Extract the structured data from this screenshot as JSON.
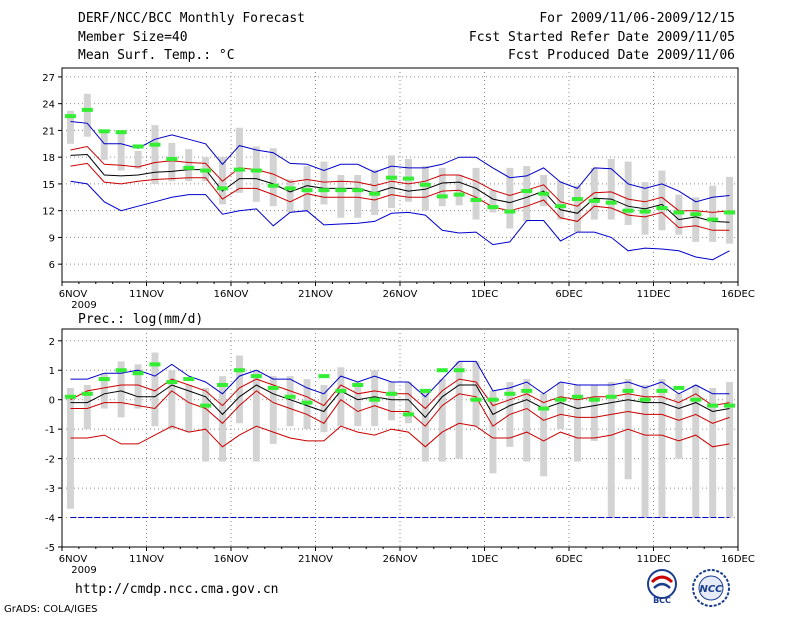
{
  "header": {
    "title": "DERF/NCC/BCC Monthly Forecast",
    "member_size": "Member Size=40",
    "variable": "Mean Surf. Temp.: °C",
    "period": "For 2009/11/06-2009/12/15",
    "started": "Fcst Started Refer Date 2009/11/05",
    "produced": "Fcst Produced Date 2009/11/06"
  },
  "footer": {
    "url": "http://cmdp.ncc.cma.gov.cn",
    "grads": "GrADS: COLA/IGES",
    "logo_bcc": "BCC",
    "logo_ncc": "NCC"
  },
  "colors": {
    "mean": "#000000",
    "spread": "#cc0000",
    "extreme": "#0000cc",
    "bar": "#d3d3d3",
    "marker": "#33ee33"
  },
  "chart_data": [
    {
      "type": "line",
      "title": "Mean Surf. Temp.: °C",
      "x_tick_labels": [
        "6NOV",
        "11NOV",
        "16NOV",
        "21NOV",
        "26NOV",
        "1DEC",
        "6DEC",
        "11DEC",
        "16DEC"
      ],
      "x_sub_label": "2009",
      "ylim": [
        4,
        28
      ],
      "yticks": [
        6,
        9,
        12,
        15,
        18,
        21,
        24,
        27
      ],
      "days": 40,
      "series": [
        {
          "name": "max",
          "color": "#0000cc",
          "values": [
            22.0,
            21.8,
            19.5,
            19.5,
            19.0,
            20.0,
            20.5,
            20.0,
            19.5,
            17.2,
            19.3,
            18.8,
            18.5,
            17.3,
            17.2,
            16.5,
            17.2,
            17.2,
            16.3,
            17.0,
            16.8,
            16.8,
            17.2,
            18.0,
            18.0,
            16.8,
            15.7,
            15.9,
            16.8,
            15.2,
            14.5,
            16.8,
            16.7,
            15.0,
            14.5,
            15.0,
            14.2,
            13.0,
            13.5,
            13.7
          ]
        },
        {
          "name": "upper",
          "color": "#cc0000",
          "values": [
            18.8,
            19.2,
            17.2,
            17.1,
            16.9,
            17.4,
            17.6,
            17.4,
            17.3,
            15.3,
            16.8,
            16.6,
            16.1,
            15.2,
            15.5,
            15.2,
            15.3,
            15.2,
            14.8,
            15.3,
            15.0,
            15.3,
            16.0,
            16.0,
            15.3,
            14.3,
            13.7,
            14.3,
            14.9,
            13.0,
            12.5,
            14.0,
            14.1,
            13.3,
            13.0,
            13.5,
            12.0,
            12.0,
            11.8,
            12.0
          ]
        },
        {
          "name": "mean",
          "color": "#000000",
          "values": [
            18.2,
            18.3,
            16.0,
            15.9,
            16.0,
            16.3,
            16.4,
            16.6,
            16.6,
            14.2,
            15.6,
            15.6,
            15.0,
            14.1,
            14.8,
            14.5,
            14.5,
            14.5,
            14.0,
            14.6,
            14.2,
            14.4,
            15.1,
            15.2,
            14.5,
            13.3,
            12.9,
            13.5,
            14.2,
            12.1,
            11.7,
            13.4,
            13.3,
            12.5,
            12.2,
            12.7,
            11.0,
            11.3,
            10.8,
            10.7
          ]
        },
        {
          "name": "lower",
          "color": "#cc0000",
          "values": [
            17.0,
            17.3,
            15.2,
            15.0,
            15.3,
            15.5,
            15.6,
            15.7,
            15.7,
            13.3,
            14.5,
            14.5,
            13.8,
            13.0,
            13.9,
            13.5,
            13.5,
            13.5,
            13.2,
            13.8,
            13.5,
            13.5,
            14.2,
            14.3,
            13.5,
            12.4,
            12.0,
            12.5,
            13.2,
            11.2,
            10.8,
            12.5,
            12.3,
            11.5,
            11.3,
            11.8,
            10.1,
            10.3,
            9.8,
            9.8
          ]
        },
        {
          "name": "min",
          "color": "#0000cc",
          "values": [
            15.3,
            15.0,
            13.0,
            12.0,
            12.5,
            13.0,
            13.5,
            13.8,
            13.8,
            11.6,
            12.0,
            12.2,
            10.3,
            11.8,
            12.0,
            10.4,
            10.5,
            10.6,
            10.8,
            11.7,
            11.8,
            11.5,
            9.8,
            9.5,
            9.6,
            8.2,
            8.5,
            10.9,
            10.9,
            8.6,
            9.6,
            9.6,
            9.0,
            7.5,
            7.8,
            7.7,
            7.5,
            6.8,
            6.5,
            7.5
          ]
        }
      ],
      "bars": {
        "low": [
          19.5,
          20.3,
          17.7,
          16.5,
          16.7,
          15.0,
          15.3,
          15.3,
          15.3,
          12.7,
          14.0,
          13.0,
          12.5,
          11.8,
          12.0,
          12.7,
          11.2,
          11.2,
          11.5,
          12.3,
          13.0,
          12.0,
          12.5,
          12.6,
          11.0,
          11.8,
          10.0,
          10.8,
          12.5,
          11.0,
          9.6,
          11.0,
          11.0,
          10.4,
          9.3,
          9.8,
          9.3,
          8.5,
          8.5,
          8.3
        ],
        "high": [
          23.2,
          25.1,
          21.0,
          21.0,
          18.7,
          21.6,
          19.6,
          18.9,
          18.0,
          18.0,
          21.3,
          19.2,
          19.0,
          15.5,
          17.0,
          17.5,
          16.0,
          16.0,
          16.6,
          18.2,
          17.8,
          17.0,
          16.8,
          16.0,
          16.8,
          14.3,
          16.8,
          17.0,
          16.0,
          15.3,
          14.8,
          16.8,
          17.8,
          17.5,
          15.2,
          16.5,
          13.8,
          13.5,
          14.8,
          15.8
        ]
      },
      "markers": [
        22.6,
        23.3,
        20.9,
        20.8,
        19.2,
        19.4,
        17.8,
        16.8,
        16.5,
        14.5,
        16.6,
        16.5,
        14.8,
        14.5,
        14.3,
        14.3,
        14.3,
        14.3,
        13.9,
        15.7,
        15.6,
        14.9,
        13.6,
        13.8,
        13.2,
        12.4,
        11.9,
        14.2,
        13.9,
        12.5,
        13.3,
        13.1,
        12.9,
        12.0,
        11.9,
        12.3,
        11.8,
        11.6,
        11.0,
        11.8
      ]
    },
    {
      "type": "line",
      "title": "Prec.: log(mm/d)",
      "x_tick_labels": [
        "6NOV",
        "11NOV",
        "16NOV",
        "21NOV",
        "26NOV",
        "1DEC",
        "6DEC",
        "11DEC",
        "16DEC"
      ],
      "x_sub_label": "2009",
      "ylim": [
        -5,
        2.4
      ],
      "yticks": [
        -5,
        -4,
        -3,
        -2,
        -1,
        0,
        1,
        2
      ],
      "days": 40,
      "series": [
        {
          "name": "max",
          "color": "#0000cc",
          "values": [
            0.7,
            0.7,
            0.9,
            0.9,
            1.0,
            0.8,
            1.2,
            0.8,
            0.6,
            0.2,
            0.8,
            1.0,
            0.7,
            0.7,
            0.4,
            0.2,
            0.8,
            0.6,
            0.8,
            0.6,
            0.6,
            0.1,
            0.7,
            1.3,
            1.3,
            0.3,
            0.4,
            0.6,
            0.2,
            0.6,
            0.5,
            0.5,
            0.5,
            0.6,
            0.4,
            0.6,
            0.2,
            0.5,
            0.2,
            0.2
          ]
        },
        {
          "name": "upper",
          "color": "#cc0000",
          "values": [
            0.0,
            0.3,
            0.4,
            0.5,
            0.5,
            0.3,
            0.7,
            0.5,
            0.3,
            -0.2,
            0.4,
            0.7,
            0.5,
            0.3,
            0.1,
            -0.2,
            0.5,
            0.2,
            0.3,
            0.2,
            0.2,
            -0.3,
            0.3,
            0.7,
            0.6,
            -0.2,
            0.0,
            0.2,
            -0.1,
            0.1,
            0.0,
            0.1,
            0.1,
            0.2,
            0.1,
            0.1,
            -0.1,
            0.2,
            -0.2,
            -0.1
          ]
        },
        {
          "name": "mean",
          "color": "#000000",
          "values": [
            -0.1,
            -0.1,
            0.2,
            0.3,
            0.1,
            0.1,
            0.5,
            0.3,
            0.1,
            -0.5,
            0.1,
            0.5,
            0.2,
            0.0,
            -0.2,
            -0.4,
            0.3,
            0.0,
            0.1,
            0.0,
            0.0,
            -0.6,
            0.1,
            0.5,
            0.5,
            -0.5,
            -0.2,
            0.0,
            -0.3,
            -0.1,
            -0.3,
            -0.2,
            -0.1,
            0.0,
            -0.1,
            -0.1,
            -0.3,
            -0.1,
            -0.4,
            -0.3
          ]
        },
        {
          "name": "lower",
          "color": "#cc0000",
          "values": [
            -0.3,
            -0.3,
            -0.1,
            -0.1,
            -0.2,
            -0.3,
            0.3,
            -0.1,
            -0.3,
            -0.8,
            -0.2,
            0.3,
            -0.1,
            -0.3,
            -0.5,
            -0.8,
            0.0,
            -0.4,
            -0.2,
            -0.4,
            -0.4,
            -0.9,
            -0.2,
            0.2,
            0.1,
            -0.9,
            -0.5,
            -0.3,
            -0.7,
            -0.5,
            -0.6,
            -0.6,
            -0.5,
            -0.4,
            -0.5,
            -0.5,
            -0.7,
            -0.5,
            -0.8,
            -0.6
          ]
        },
        {
          "name": "min",
          "color": "#cc0000",
          "values": [
            -1.3,
            -1.3,
            -1.2,
            -1.5,
            -1.5,
            -1.2,
            -0.9,
            -1.1,
            -1.0,
            -1.6,
            -1.2,
            -0.9,
            -1.1,
            -1.3,
            -1.4,
            -1.4,
            -0.9,
            -1.1,
            -1.2,
            -1.0,
            -1.1,
            -1.6,
            -1.1,
            -0.8,
            -0.9,
            -1.3,
            -1.3,
            -1.1,
            -1.4,
            -1.1,
            -1.3,
            -1.3,
            -1.2,
            -1.0,
            -1.2,
            -1.2,
            -1.4,
            -1.2,
            -1.6,
            -1.5
          ]
        },
        {
          "name": "floor",
          "color": "#0000cc",
          "values": [
            -4.0,
            -4.0,
            -4.0,
            -4.0,
            -4.0,
            -4.0,
            -4.0,
            -4.0,
            -4.0,
            -4.0,
            -4.0,
            -4.0,
            -4.0,
            -4.0,
            -4.0,
            -4.0,
            -4.0,
            -4.0,
            -4.0,
            -4.0,
            -4.0,
            -4.0,
            -4.0,
            -4.0,
            -4.0,
            -4.0,
            -4.0,
            -4.0,
            -4.0,
            -4.0,
            -4.0,
            -4.0,
            -4.0,
            -4.0,
            -4.0,
            -4.0,
            -4.0,
            -4.0,
            -4.0,
            -4.0
          ]
        }
      ],
      "bars": {
        "low": [
          -3.7,
          -1.0,
          -0.3,
          -0.6,
          -0.3,
          -0.9,
          -1.0,
          -1.1,
          -2.1,
          -2.1,
          -0.8,
          -2.1,
          -1.5,
          -0.9,
          -1.0,
          -1.1,
          -0.9,
          -0.9,
          -0.9,
          -0.7,
          -0.8,
          -2.1,
          -2.1,
          -2.0,
          -0.9,
          -2.5,
          -1.6,
          -2.1,
          -2.6,
          -1.0,
          -2.1,
          -1.4,
          -4.0,
          -2.7,
          -4.0,
          -4.0,
          -2.0,
          -4.0,
          -4.0,
          -4.0
        ],
        "high": [
          0.4,
          0.5,
          0.9,
          1.3,
          1.2,
          1.6,
          1.0,
          0.5,
          0.4,
          0.8,
          1.5,
          1.0,
          0.8,
          0.8,
          0.7,
          0.5,
          1.1,
          0.6,
          1.0,
          0.6,
          0.6,
          0.3,
          0.7,
          1.3,
          1.3,
          0.3,
          0.6,
          0.7,
          0.2,
          0.6,
          0.5,
          0.5,
          0.6,
          0.7,
          0.5,
          0.7,
          0.2,
          0.5,
          0.4,
          0.6
        ]
      },
      "markers": [
        0.1,
        0.2,
        0.7,
        1.0,
        0.9,
        1.2,
        0.6,
        0.7,
        -0.2,
        0.5,
        1.0,
        0.8,
        0.4,
        0.1,
        -0.1,
        0.8,
        0.3,
        0.5,
        0.0,
        0.2,
        -0.5,
        0.3,
        1.0,
        1.0,
        0.0,
        0.0,
        0.2,
        0.3,
        -0.3,
        0.0,
        0.1,
        0.0,
        0.1,
        0.3,
        0.0,
        0.3,
        0.4,
        0.0,
        -0.2,
        -0.2
      ]
    }
  ]
}
